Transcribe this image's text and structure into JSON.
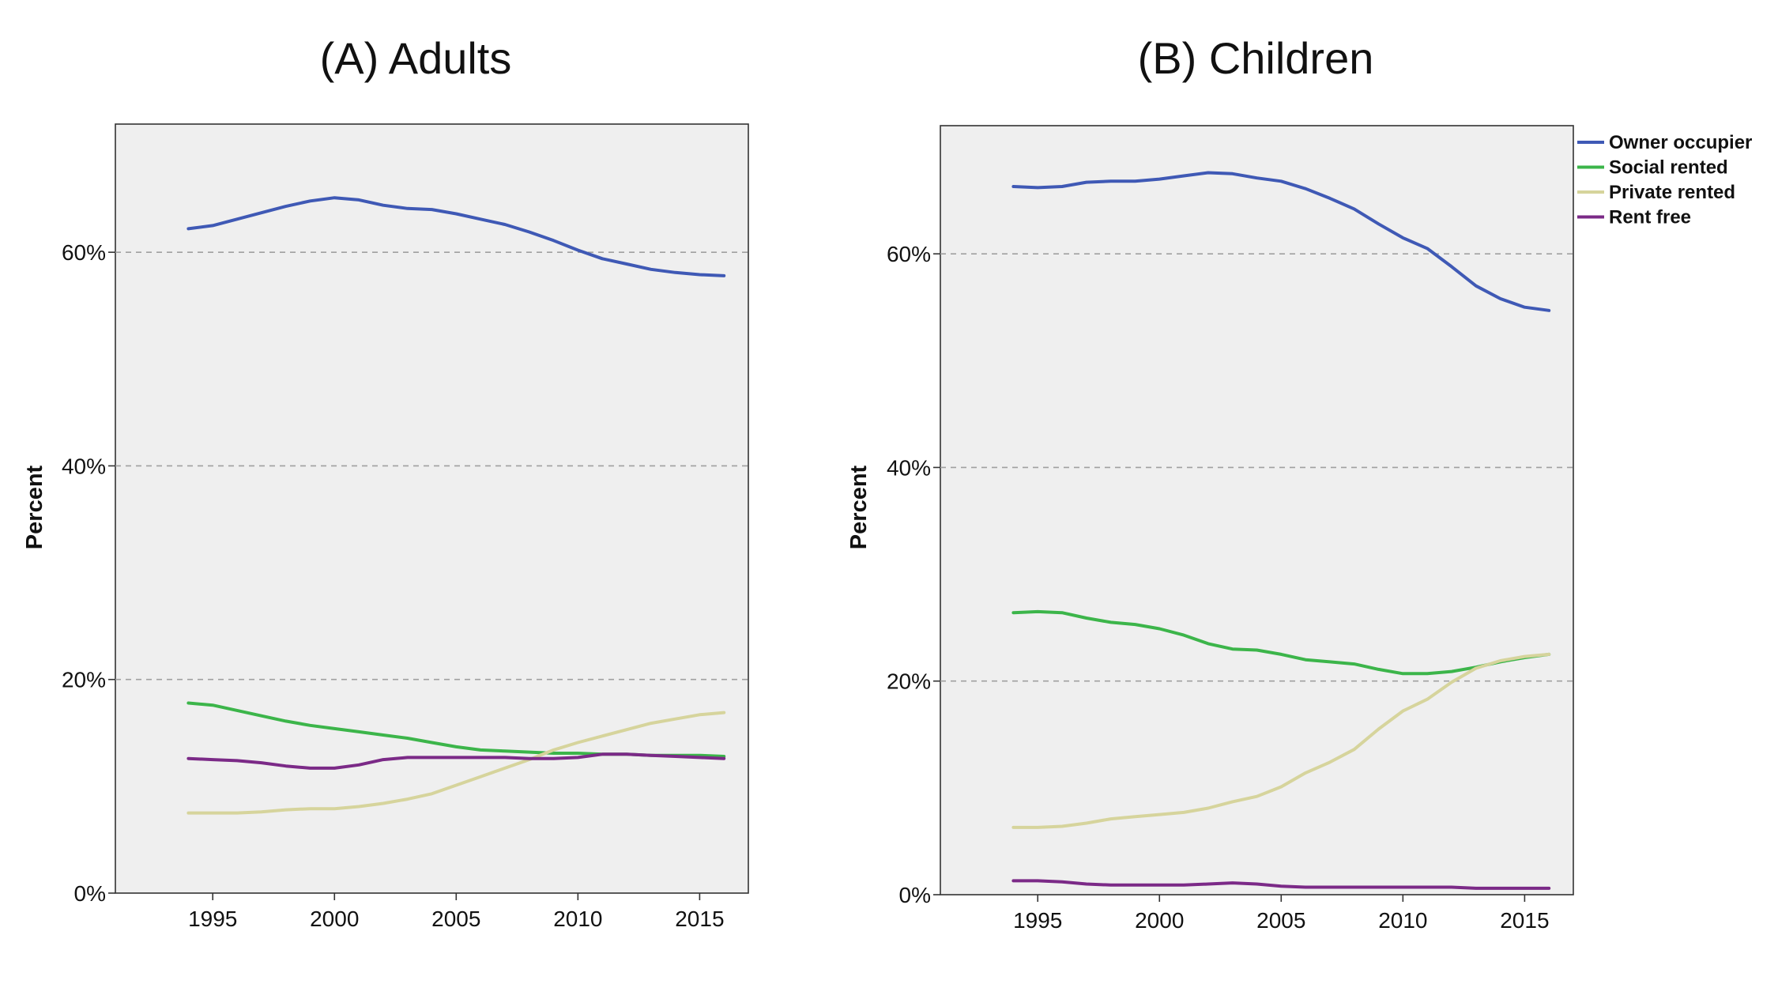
{
  "colors": {
    "Owner occupier": "#3f59b5",
    "Social rented": "#3cb54a",
    "Private rented": "#d6d49c",
    "Rent free": "#7b2a87"
  },
  "legend": {
    "entries": [
      "Owner occupier",
      "Social rented",
      "Private rented",
      "Rent free"
    ],
    "placement": "right"
  },
  "chart_data": [
    {
      "type": "line",
      "title": "(A) Adults",
      "xlabel": "",
      "ylabel": "Percent",
      "xlim": [
        1991,
        2017
      ],
      "ylim": [
        0,
        72
      ],
      "xticks": [
        1995,
        2000,
        2005,
        2010,
        2015
      ],
      "yticks": [
        0,
        20,
        40,
        60
      ],
      "ytick_labels": [
        "0%",
        "20%",
        "40%",
        "60%"
      ],
      "grid": "dashed horizontal at 20%, 40%, 60%",
      "x": [
        1994,
        1995,
        1996,
        1997,
        1998,
        1999,
        2000,
        2001,
        2002,
        2003,
        2004,
        2005,
        2006,
        2007,
        2008,
        2009,
        2010,
        2011,
        2012,
        2013,
        2014,
        2015,
        2016
      ],
      "series": [
        {
          "name": "Owner occupier",
          "values": [
            62.2,
            62.5,
            63.1,
            63.7,
            64.3,
            64.8,
            65.1,
            64.9,
            64.4,
            64.1,
            64.0,
            63.6,
            63.1,
            62.6,
            61.9,
            61.1,
            60.2,
            59.4,
            58.9,
            58.4,
            58.1,
            57.9,
            57.8
          ]
        },
        {
          "name": "Social rented",
          "values": [
            17.8,
            17.6,
            17.1,
            16.6,
            16.1,
            15.7,
            15.4,
            15.1,
            14.8,
            14.5,
            14.1,
            13.7,
            13.4,
            13.3,
            13.2,
            13.1,
            13.1,
            13.0,
            13.0,
            12.9,
            12.9,
            12.9,
            12.8
          ]
        },
        {
          "name": "Private rented",
          "values": [
            7.5,
            7.5,
            7.5,
            7.6,
            7.8,
            7.9,
            7.9,
            8.1,
            8.4,
            8.8,
            9.3,
            10.1,
            10.9,
            11.7,
            12.5,
            13.4,
            14.1,
            14.7,
            15.3,
            15.9,
            16.3,
            16.7,
            16.9
          ]
        },
        {
          "name": "Rent free",
          "values": [
            12.6,
            12.5,
            12.4,
            12.2,
            11.9,
            11.7,
            11.7,
            12.0,
            12.5,
            12.7,
            12.7,
            12.7,
            12.7,
            12.7,
            12.6,
            12.6,
            12.7,
            13.0,
            13.0,
            12.9,
            12.8,
            12.7,
            12.6
          ]
        }
      ]
    },
    {
      "type": "line",
      "title": "(B) Children",
      "xlabel": "",
      "ylabel": "Percent",
      "xlim": [
        1991,
        2017
      ],
      "ylim": [
        0,
        72
      ],
      "xticks": [
        1995,
        2000,
        2005,
        2010,
        2015
      ],
      "yticks": [
        0,
        20,
        40,
        60
      ],
      "ytick_labels": [
        "0%",
        "20%",
        "40%",
        "60%"
      ],
      "grid": "dashed horizontal at 20%, 40%, 60%",
      "x": [
        1994,
        1995,
        1996,
        1997,
        1998,
        1999,
        2000,
        2001,
        2002,
        2003,
        2004,
        2005,
        2006,
        2007,
        2008,
        2009,
        2010,
        2011,
        2012,
        2013,
        2014,
        2015,
        2016
      ],
      "series": [
        {
          "name": "Owner occupier",
          "values": [
            66.3,
            66.2,
            66.3,
            66.7,
            66.8,
            66.8,
            67.0,
            67.3,
            67.6,
            67.5,
            67.1,
            66.8,
            66.1,
            65.2,
            64.2,
            62.8,
            61.5,
            60.5,
            58.8,
            57.0,
            55.8,
            55.0,
            54.7
          ]
        },
        {
          "name": "Social rented",
          "values": [
            26.4,
            26.5,
            26.4,
            25.9,
            25.5,
            25.3,
            24.9,
            24.3,
            23.5,
            23.0,
            22.9,
            22.5,
            22.0,
            21.8,
            21.6,
            21.1,
            20.7,
            20.7,
            20.9,
            21.3,
            21.8,
            22.2,
            22.5
          ]
        },
        {
          "name": "Private rented",
          "values": [
            6.3,
            6.3,
            6.4,
            6.7,
            7.1,
            7.3,
            7.5,
            7.7,
            8.1,
            8.7,
            9.2,
            10.1,
            11.4,
            12.4,
            13.6,
            15.5,
            17.2,
            18.3,
            19.9,
            21.2,
            21.9,
            22.3,
            22.5
          ]
        },
        {
          "name": "Rent free",
          "values": [
            1.3,
            1.3,
            1.2,
            1.0,
            0.9,
            0.9,
            0.9,
            0.9,
            1.0,
            1.1,
            1.0,
            0.8,
            0.7,
            0.7,
            0.7,
            0.7,
            0.7,
            0.7,
            0.7,
            0.6,
            0.6,
            0.6,
            0.6
          ]
        }
      ]
    }
  ]
}
